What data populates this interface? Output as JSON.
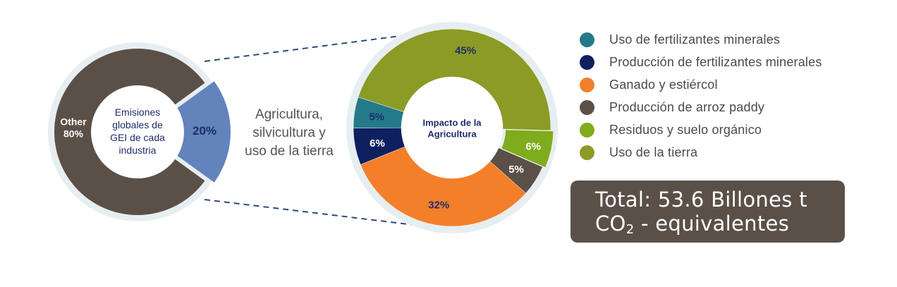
{
  "chart_data": [
    {
      "type": "pie",
      "title": "Emisiones globales de GEI de cada industria",
      "center_label_lines": [
        "Emisiones",
        "globales de",
        "GEI de cada",
        "industria"
      ],
      "slices": [
        {
          "name": "Other",
          "value": 80,
          "label": "80%",
          "color": "#5b5048"
        },
        {
          "name": "Agricultura, silvicultura y uso de la tierra",
          "value": 20,
          "label": "20%",
          "color": "#6283bb"
        }
      ]
    },
    {
      "type": "pie",
      "title": "Impacto de la Agricultura",
      "center_label_lines": [
        "Impacto de la",
        "Agricultura"
      ],
      "slices": [
        {
          "name": "Uso de la tierra",
          "value": 45,
          "label": "45%",
          "color": "#8b9b26"
        },
        {
          "name": "Residuos y suelo orgánico",
          "value": 6,
          "label": "6%",
          "color": "#7fac1d"
        },
        {
          "name": "Producción de arroz paddy",
          "value": 5,
          "label": "5%",
          "color": "#5b5048"
        },
        {
          "name": "Ganado y estiércol",
          "value": 32,
          "label": "32%",
          "color": "#f47f2a"
        },
        {
          "name": "Producción de fertilizantes minerales",
          "value": 6,
          "label": "6%",
          "color": "#0e2060"
        },
        {
          "name": "Uso de fertilizantes minerales",
          "value": 5,
          "label": "5%",
          "color": "#247a89"
        }
      ]
    }
  ],
  "middle_label_lines": [
    "Agricultura,",
    "silvicultura y",
    "uso de la tierra"
  ],
  "legend": [
    {
      "label": "Uso de fertilizantes minerales",
      "color": "#247a89"
    },
    {
      "label": "Producción de fertilizantes minerales",
      "color": "#0e2060"
    },
    {
      "label": "Ganado y estiércol",
      "color": "#f47f2a"
    },
    {
      "label": "Producción de arroz paddy",
      "color": "#5b5048"
    },
    {
      "label": "Residuos y suelo orgánico",
      "color": "#7fac1d"
    },
    {
      "label": "Uso de la tierra",
      "color": "#8b9b26"
    }
  ],
  "total": {
    "line1": "Total: 53.6 Billones t",
    "line2_prefix": "CO",
    "line2_sub": "2",
    "line2_suffix": " - equivalentes"
  },
  "colors": {
    "left_other_label": "#ffffff",
    "left_slice_label": "#1f2d6b",
    "center_text": "#1f2d6b",
    "connector": "#2d4a7a",
    "halo": "#e7eef1"
  }
}
